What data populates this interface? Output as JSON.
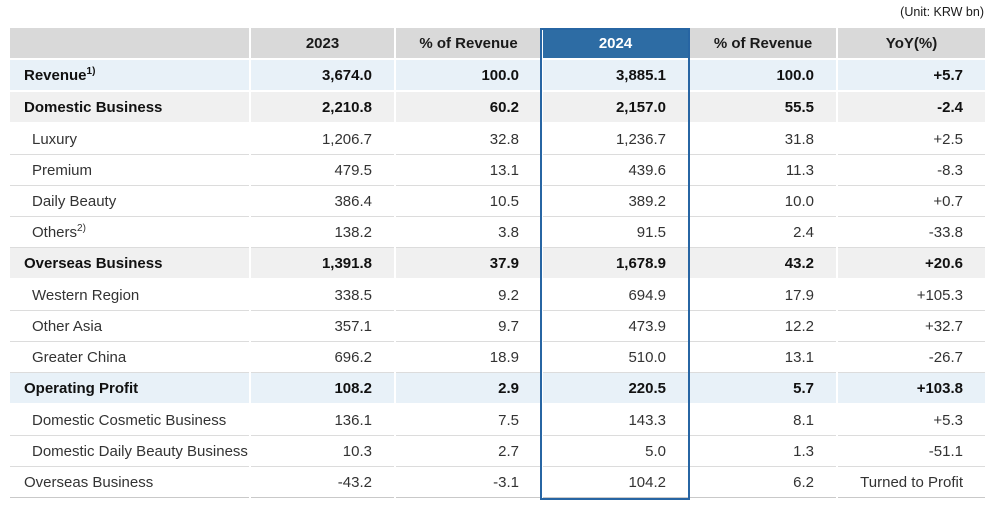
{
  "unit_label": "(Unit: KRW bn)",
  "colors": {
    "accent_blue": "#2d6ca4",
    "header_gray": "#d9d9d9",
    "row_highlight_blue": "#e8f1f8",
    "row_highlight_gray": "#f0f0f0"
  },
  "table": {
    "columns": [
      "",
      "2023",
      "% of Revenue",
      "2024",
      "% of Revenue",
      "YoY(%)"
    ],
    "highlighted_column": "2024",
    "rows": [
      {
        "label": "Revenue",
        "sup": "1)",
        "style": "blue",
        "bold": true,
        "indent": 0,
        "values": [
          "3,674.0",
          "100.0",
          "3,885.1",
          "100.0",
          "+5.7"
        ]
      },
      {
        "label": "Domestic Business",
        "style": "gray",
        "bold": true,
        "indent": 0,
        "values": [
          "2,210.8",
          "60.2",
          "2,157.0",
          "55.5",
          "-2.4"
        ]
      },
      {
        "label": "Luxury",
        "style": "plain",
        "bold": false,
        "indent": 1,
        "values": [
          "1,206.7",
          "32.8",
          "1,236.7",
          "31.8",
          "+2.5"
        ]
      },
      {
        "label": "Premium",
        "style": "plain",
        "bold": false,
        "indent": 1,
        "values": [
          "479.5",
          "13.1",
          "439.6",
          "11.3",
          "-8.3"
        ]
      },
      {
        "label": "Daily Beauty",
        "style": "plain",
        "bold": false,
        "indent": 1,
        "values": [
          "386.4",
          "10.5",
          "389.2",
          "10.0",
          "+0.7"
        ]
      },
      {
        "label": "Others",
        "sup": "2)",
        "style": "plain",
        "bold": false,
        "indent": 1,
        "values": [
          "138.2",
          "3.8",
          "91.5",
          "2.4",
          "-33.8"
        ]
      },
      {
        "label": "Overseas Business",
        "style": "gray",
        "bold": true,
        "indent": 0,
        "values": [
          "1,391.8",
          "37.9",
          "1,678.9",
          "43.2",
          "+20.6"
        ]
      },
      {
        "label": "Western Region",
        "style": "plain",
        "bold": false,
        "indent": 1,
        "values": [
          "338.5",
          "9.2",
          "694.9",
          "17.9",
          "+105.3"
        ]
      },
      {
        "label": "Other Asia",
        "style": "plain",
        "bold": false,
        "indent": 1,
        "values": [
          "357.1",
          "9.7",
          "473.9",
          "12.2",
          "+32.7"
        ]
      },
      {
        "label": "Greater China",
        "style": "plain",
        "bold": false,
        "indent": 1,
        "values": [
          "696.2",
          "18.9",
          "510.0",
          "13.1",
          "-26.7"
        ]
      },
      {
        "label": "Operating Profit",
        "style": "blue",
        "bold": true,
        "indent": 0,
        "values": [
          "108.2",
          "2.9",
          "220.5",
          "5.7",
          "+103.8"
        ]
      },
      {
        "label": "Domestic Cosmetic Business",
        "style": "plain",
        "bold": false,
        "indent": 1,
        "values": [
          "136.1",
          "7.5",
          "143.3",
          "8.1",
          "+5.3"
        ]
      },
      {
        "label": "Domestic Daily Beauty Business",
        "style": "plain",
        "bold": false,
        "indent": 1,
        "values": [
          "10.3",
          "2.7",
          "5.0",
          "1.3",
          "-51.1"
        ]
      },
      {
        "label": "Overseas Business",
        "style": "plain",
        "bold": false,
        "indent": 0,
        "values": [
          "-43.2",
          "-3.1",
          "104.2",
          "6.2",
          "Turned to Profit"
        ]
      }
    ]
  }
}
